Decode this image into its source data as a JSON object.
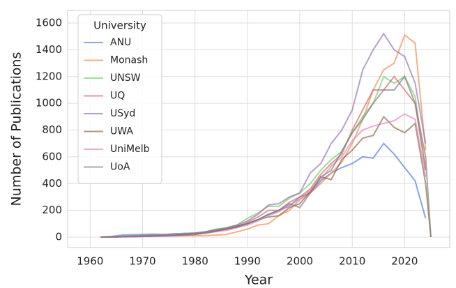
{
  "chart_data": {
    "type": "line",
    "xlabel": "Year",
    "ylabel": "Number of Publications",
    "legend_title": "University",
    "legend_loc": "upper left",
    "grid": true,
    "x": [
      1962,
      1964,
      1966,
      1968,
      1970,
      1972,
      1974,
      1976,
      1978,
      1980,
      1982,
      1984,
      1986,
      1988,
      1990,
      1992,
      1994,
      1996,
      1998,
      2000,
      2002,
      2004,
      2006,
      2008,
      2010,
      2012,
      2014,
      2016,
      2018,
      2020,
      2022,
      2024,
      2025
    ],
    "xlim": [
      1955.7,
      2028.6
    ],
    "xticks": [
      1960,
      1970,
      1980,
      1990,
      2000,
      2010,
      2020
    ],
    "ylim": [
      -78,
      1694
    ],
    "yticks": [
      0,
      200,
      400,
      600,
      800,
      1000,
      1200,
      1400,
      1600
    ],
    "series": [
      {
        "name": "ANU",
        "color": "#4878d0",
        "values": [
          0,
          5,
          15,
          18,
          20,
          22,
          20,
          25,
          28,
          30,
          40,
          50,
          60,
          80,
          100,
          130,
          170,
          200,
          230,
          300,
          330,
          420,
          480,
          520,
          550,
          600,
          590,
          700,
          620,
          520,
          420,
          140,
          null
        ]
      },
      {
        "name": "Monash",
        "color": "#ee854a",
        "values": [
          0,
          0,
          2,
          3,
          5,
          5,
          8,
          10,
          10,
          10,
          12,
          15,
          20,
          40,
          60,
          90,
          100,
          160,
          200,
          280,
          330,
          400,
          480,
          560,
          700,
          880,
          1100,
          1250,
          1300,
          1510,
          1450,
          650,
          null
        ]
      },
      {
        "name": "UNSW",
        "color": "#6acc64",
        "values": [
          0,
          2,
          5,
          8,
          10,
          12,
          15,
          20,
          28,
          30,
          40,
          60,
          70,
          90,
          140,
          180,
          230,
          230,
          290,
          330,
          400,
          500,
          580,
          640,
          780,
          900,
          1000,
          1200,
          1150,
          1200,
          1050,
          500,
          null
        ]
      },
      {
        "name": "UQ",
        "color": "#d65f5f",
        "values": [
          0,
          1,
          3,
          5,
          6,
          8,
          10,
          15,
          20,
          25,
          35,
          50,
          60,
          80,
          110,
          150,
          200,
          200,
          260,
          300,
          360,
          470,
          550,
          620,
          800,
          950,
          1100,
          1100,
          1200,
          1100,
          1000,
          500,
          null
        ]
      },
      {
        "name": "USyd",
        "color": "#956cb4",
        "values": [
          0,
          2,
          5,
          8,
          12,
          15,
          18,
          20,
          25,
          30,
          40,
          55,
          70,
          90,
          120,
          170,
          240,
          250,
          300,
          330,
          480,
          550,
          700,
          800,
          950,
          1250,
          1400,
          1520,
          1400,
          1350,
          1150,
          700,
          null
        ]
      },
      {
        "name": "UWA",
        "color": "#8c613c",
        "values": [
          0,
          1,
          3,
          5,
          6,
          8,
          10,
          12,
          18,
          22,
          30,
          45,
          60,
          80,
          100,
          130,
          150,
          160,
          220,
          250,
          340,
          450,
          430,
          580,
          650,
          740,
          760,
          900,
          820,
          780,
          850,
          400,
          0
        ]
      },
      {
        "name": "UniMelb",
        "color": "#dc7ec0",
        "values": [
          0,
          0,
          2,
          3,
          5,
          6,
          8,
          10,
          15,
          20,
          30,
          40,
          50,
          70,
          90,
          120,
          160,
          190,
          240,
          280,
          350,
          430,
          530,
          600,
          720,
          800,
          830,
          850,
          870,
          920,
          880,
          450,
          null
        ]
      },
      {
        "name": "UoA",
        "color": "#797979",
        "values": [
          0,
          1,
          2,
          3,
          5,
          8,
          10,
          12,
          15,
          20,
          30,
          45,
          60,
          75,
          100,
          130,
          170,
          200,
          250,
          220,
          330,
          450,
          500,
          640,
          780,
          880,
          1000,
          1100,
          1100,
          1200,
          1000,
          600,
          0
        ]
      }
    ]
  }
}
